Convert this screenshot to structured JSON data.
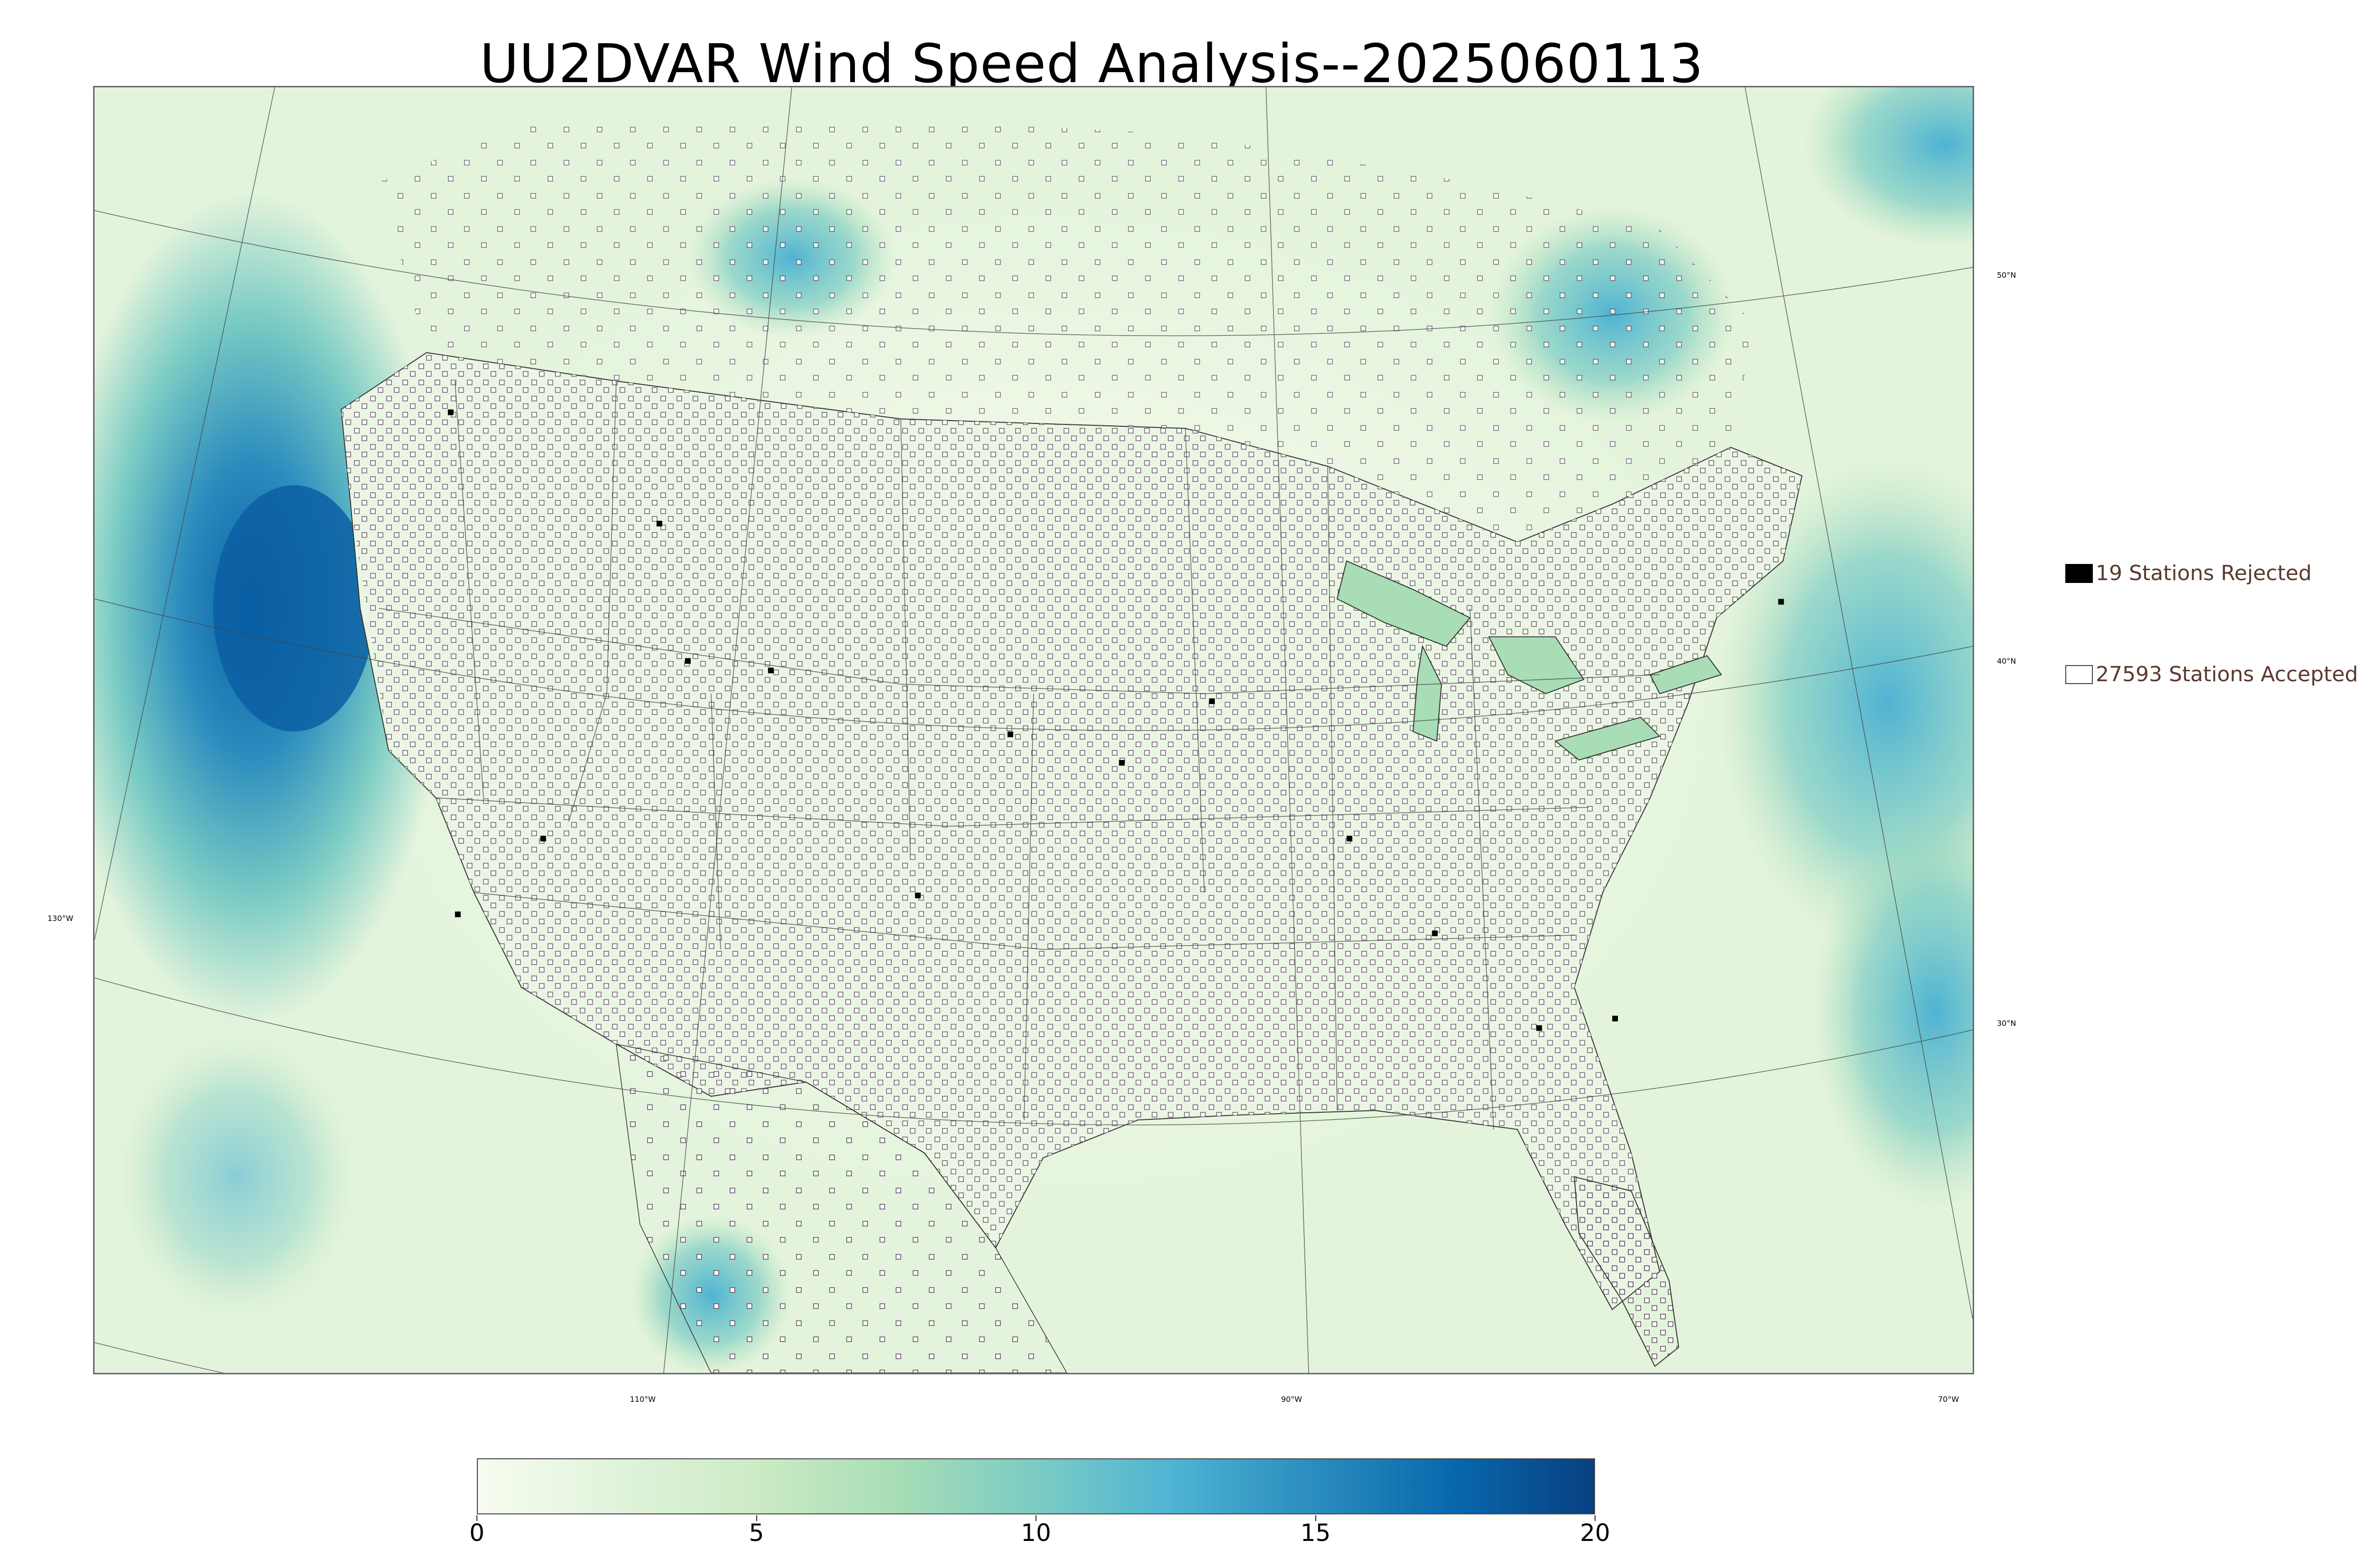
{
  "title": "UU2DVAR Wind Speed Analysis--2025060113",
  "map": {
    "variable": "wind speed",
    "lat_labels": [
      "50°N",
      "40°N",
      "30°N"
    ],
    "lon_labels": [
      "130°W",
      "110°W",
      "90°W",
      "70°W"
    ]
  },
  "legend": {
    "rejected_label": "19 Stations Rejected",
    "accepted_label": "27593 Stations Accepted",
    "rejected_color": "#000000",
    "accepted_color": "#ffffff"
  },
  "colorbar": {
    "ticks": [
      "0",
      "5",
      "10",
      "15",
      "20"
    ],
    "min": 0,
    "max": 20,
    "colors": [
      "#f7fcf0",
      "#e0f3db",
      "#ccebc5",
      "#a8ddb5",
      "#7bccc4",
      "#4eb3d3",
      "#2b8cbe",
      "#0868ac",
      "#084081"
    ]
  }
}
